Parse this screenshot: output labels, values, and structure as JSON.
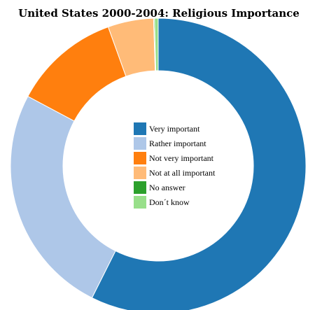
{
  "chart_data": {
    "type": "pie",
    "title": "United States 2000-2004: Religious Importance",
    "categories": [
      "Very important",
      "Rather important",
      "Not very important",
      "Not at all important",
      "No answer",
      "Don´t know"
    ],
    "values": [
      57.4,
      25.4,
      11.7,
      5.0,
      0.1,
      0.4
    ],
    "colors": [
      "#1f77b4",
      "#aec7e8",
      "#ff7f0e",
      "#ffbb78",
      "#2ca02c",
      "#98df8a"
    ],
    "legend": "center"
  }
}
